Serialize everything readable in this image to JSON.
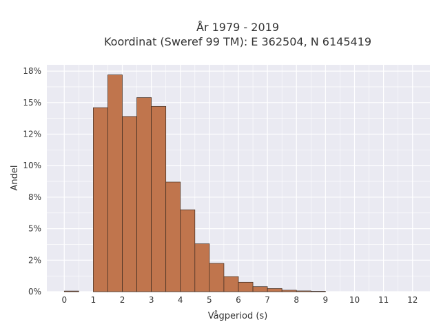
{
  "chart_data": {
    "type": "bar",
    "title_lines": [
      "År 1979 - 2019",
      "Koordinat (Sweref 99 TM): E 362504, N 6145419"
    ],
    "xlabel": "Vågperiod (s)",
    "ylabel": "Andel",
    "xlim": [
      -0.6,
      12.6
    ],
    "ylim": [
      0,
      0.18
    ],
    "x_ticks": [
      0,
      1,
      2,
      3,
      4,
      5,
      6,
      7,
      8,
      9,
      10,
      11,
      12
    ],
    "y_ticks": [
      0,
      0.025,
      0.05,
      0.075,
      0.1,
      0.125,
      0.15,
      0.175
    ],
    "y_tick_labels": [
      "0%",
      "2%",
      "5%",
      "8%",
      "10%",
      "12%",
      "15%",
      "18%"
    ],
    "bin_width": 0.5,
    "bins": [
      {
        "x0": 0.0,
        "value": 0.0005
      },
      {
        "x0": 1.0,
        "value": 0.146
      },
      {
        "x0": 1.5,
        "value": 0.172
      },
      {
        "x0": 2.0,
        "value": 0.139
      },
      {
        "x0": 2.5,
        "value": 0.154
      },
      {
        "x0": 3.0,
        "value": 0.147
      },
      {
        "x0": 3.5,
        "value": 0.087
      },
      {
        "x0": 4.0,
        "value": 0.065
      },
      {
        "x0": 4.5,
        "value": 0.038
      },
      {
        "x0": 5.0,
        "value": 0.0225
      },
      {
        "x0": 5.5,
        "value": 0.012
      },
      {
        "x0": 6.0,
        "value": 0.0075
      },
      {
        "x0": 6.5,
        "value": 0.004
      },
      {
        "x0": 7.0,
        "value": 0.0025
      },
      {
        "x0": 7.5,
        "value": 0.0012
      },
      {
        "x0": 8.0,
        "value": 0.0006
      },
      {
        "x0": 8.5,
        "value": 0.0003
      }
    ],
    "grid": true,
    "colors": {
      "bar_fill": "#C0754D",
      "bar_edge": "#3b2a20",
      "plot_bg": "#EAEAF2",
      "grid": "#FFFFFF"
    }
  }
}
